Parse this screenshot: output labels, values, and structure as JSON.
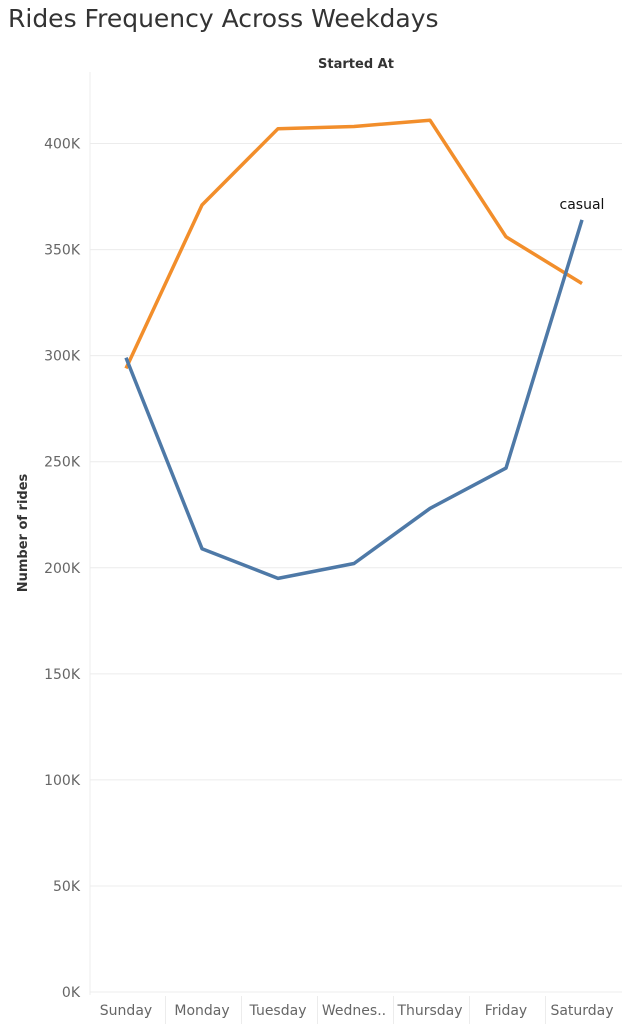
{
  "title": "Rides Frequency Across Weekdays",
  "chart_data": {
    "type": "line",
    "title": "Rides Frequency Across Weekdays",
    "xlabel": "Started At",
    "ylabel": "Number of rides",
    "categories": [
      "Sunday",
      "Monday",
      "Tuesday",
      "Wednes..",
      "Thursday",
      "Friday",
      "Saturday"
    ],
    "ylim": [
      0,
      440000
    ],
    "yticks": [
      0,
      50000,
      100000,
      150000,
      200000,
      250000,
      300000,
      350000,
      400000
    ],
    "ytick_labels": [
      "0K",
      "50K",
      "100K",
      "150K",
      "200K",
      "250K",
      "300K",
      "350K",
      "400K"
    ],
    "grid": true,
    "series": [
      {
        "name": "",
        "color": "#F28E2B",
        "values": [
          294000,
          371000,
          407000,
          408000,
          411000,
          356000,
          334000
        ]
      },
      {
        "name": "casual",
        "color": "#4E79A7",
        "values": [
          299000,
          209000,
          195000,
          202000,
          228000,
          247000,
          364000
        ]
      }
    ]
  }
}
